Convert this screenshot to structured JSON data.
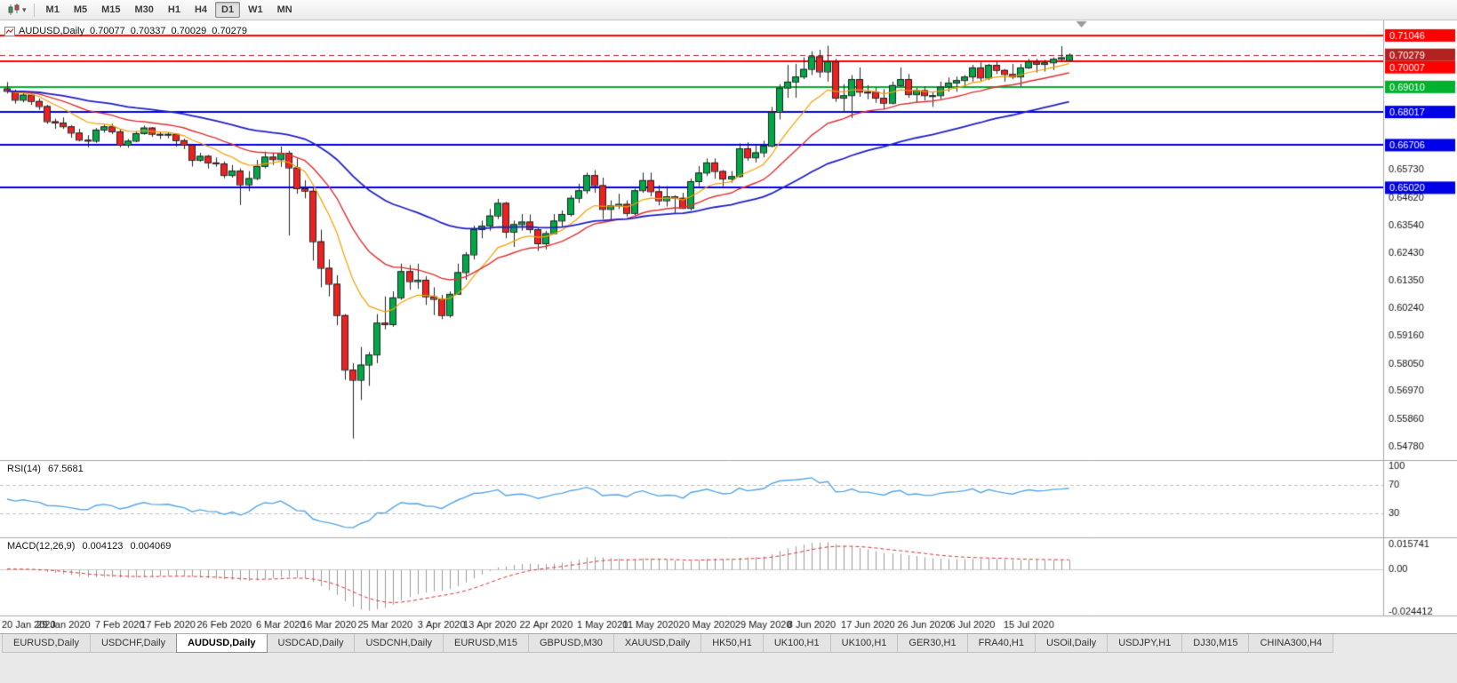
{
  "toolbar": {
    "chart_icon": "candlestick-chart-icon",
    "timeframes": [
      {
        "label": "M1",
        "active": false
      },
      {
        "label": "M5",
        "active": false
      },
      {
        "label": "M15",
        "active": false
      },
      {
        "label": "M30",
        "active": false
      },
      {
        "label": "H1",
        "active": false
      },
      {
        "label": "H4",
        "active": false
      },
      {
        "label": "D1",
        "active": true
      },
      {
        "label": "W1",
        "active": false
      },
      {
        "label": "MN",
        "active": false
      }
    ]
  },
  "chart": {
    "symbol": "AUDUSD,Daily",
    "ohlc": {
      "open": "0.70077",
      "high": "0.70337",
      "low": "0.70029",
      "close": "0.70279"
    }
  },
  "indicators": {
    "rsi": {
      "label": "RSI(14)",
      "value": "67.5681"
    },
    "macd": {
      "label": "MACD(12,26,9)",
      "value": "0.004123",
      "signal_value": "0.004069"
    }
  },
  "chart_data": {
    "type": "candlestick",
    "symbol": "AUDUSD",
    "timeframe": "Daily",
    "y_axis": {
      "max": 0.715,
      "min": 0.5435,
      "labels": [
        "0.65730",
        "0.64620",
        "0.63540",
        "0.62430",
        "0.61350",
        "0.60240",
        "0.59160",
        "0.58050",
        "0.56970",
        "0.55860",
        "0.54780"
      ]
    },
    "rsi_axis": {
      "max": 100,
      "min": 0,
      "labels": [
        "100",
        "70",
        "30"
      ],
      "dashed_levels": [
        70,
        30
      ]
    },
    "macd_axis": {
      "max": 0.0158,
      "min": -0.0244,
      "labels": [
        "0.015741",
        "0.00",
        "-0.024412"
      ]
    },
    "levels": [
      {
        "text": "0.71046",
        "color": "#FF0000"
      },
      {
        "text": "0.70007",
        "color": "#FF0000"
      },
      {
        "text": "0.69010",
        "color": "#00B22D"
      },
      {
        "text": "0.68017",
        "color": "#0000E8"
      },
      {
        "text": "0.66706",
        "color": "#0000E8"
      },
      {
        "text": "0.65020",
        "color": "#0000E8"
      }
    ],
    "current_price": {
      "text": "0.70279",
      "color": "#B22222"
    },
    "moving_averages": [
      {
        "name": "fast-ma",
        "period": 10,
        "color": "#F5A000",
        "width": 1.2
      },
      {
        "name": "mid-ma",
        "period": 21,
        "color": "#E03030",
        "width": 1.4
      },
      {
        "name": "slow-ma",
        "period": 50,
        "color": "#2020C8",
        "width": 1.8
      }
    ],
    "colors": {
      "bull": "#00A846",
      "bear": "#EE2020",
      "wick": "#222222",
      "rsi": "#56A5E8",
      "macd_hist": "#9A9A9A",
      "macd_signal": "#E03030"
    },
    "x_axis": {
      "labels": [
        {
          "index": 0,
          "text": "20 Jan 2020"
        },
        {
          "index": 7,
          "text": "29 Jan 2020"
        },
        {
          "index": 14,
          "text": "7 Feb 2020"
        },
        {
          "index": 20,
          "text": "17 Feb 2020"
        },
        {
          "index": 27,
          "text": "26 Feb 2020"
        },
        {
          "index": 34,
          "text": "6 Mar 2020"
        },
        {
          "index": 40,
          "text": "16 Mar 2020"
        },
        {
          "index": 47,
          "text": "25 Mar 2020"
        },
        {
          "index": 54,
          "text": "3 Apr 2020"
        },
        {
          "index": 60,
          "text": "13 Apr 2020"
        },
        {
          "index": 67,
          "text": "22 Apr 2020"
        },
        {
          "index": 74,
          "text": "1 May 2020"
        },
        {
          "index": 80,
          "text": "11 May 2020"
        },
        {
          "index": 87,
          "text": "20 May 2020"
        },
        {
          "index": 94,
          "text": "29 May 2020"
        },
        {
          "index": 100,
          "text": "8 Jun 2020"
        },
        {
          "index": 107,
          "text": "17 Jun 2020"
        },
        {
          "index": 114,
          "text": "26 Jun 2020"
        },
        {
          "index": 120,
          "text": "6 Jul 2020"
        },
        {
          "index": 127,
          "text": "15 Jul 2020"
        }
      ]
    },
    "candles": [
      [
        0.6895,
        0.692,
        0.6875,
        0.6885
      ],
      [
        0.6885,
        0.689,
        0.6835,
        0.685
      ],
      [
        0.685,
        0.688,
        0.684,
        0.687
      ],
      [
        0.687,
        0.6875,
        0.683,
        0.6845
      ],
      [
        0.6845,
        0.6855,
        0.681,
        0.6825
      ],
      [
        0.6825,
        0.683,
        0.6755,
        0.6765
      ],
      [
        0.6765,
        0.6775,
        0.6735,
        0.676
      ],
      [
        0.676,
        0.678,
        0.6735,
        0.6745
      ],
      [
        0.6745,
        0.675,
        0.67,
        0.672
      ],
      [
        0.672,
        0.6735,
        0.6685,
        0.6692
      ],
      [
        0.6692,
        0.671,
        0.6662,
        0.6688
      ],
      [
        0.6688,
        0.6738,
        0.668,
        0.6732
      ],
      [
        0.6732,
        0.6752,
        0.672,
        0.6745
      ],
      [
        0.6745,
        0.6755,
        0.6715,
        0.6725
      ],
      [
        0.6725,
        0.6733,
        0.6662,
        0.6672
      ],
      [
        0.6672,
        0.6695,
        0.666,
        0.6688
      ],
      [
        0.6688,
        0.6725,
        0.6682,
        0.6718
      ],
      [
        0.6718,
        0.6748,
        0.6712,
        0.674
      ],
      [
        0.674,
        0.6742,
        0.6703,
        0.6715
      ],
      [
        0.6715,
        0.6723,
        0.6695,
        0.6712
      ],
      [
        0.6712,
        0.6722,
        0.6698,
        0.6715
      ],
      [
        0.6715,
        0.6718,
        0.6665,
        0.669
      ],
      [
        0.669,
        0.6696,
        0.6655,
        0.6672
      ],
      [
        0.6672,
        0.6676,
        0.6586,
        0.6612
      ],
      [
        0.6612,
        0.664,
        0.6605,
        0.6628
      ],
      [
        0.6628,
        0.6632,
        0.6578,
        0.6602
      ],
      [
        0.6602,
        0.6622,
        0.6585,
        0.6598
      ],
      [
        0.6598,
        0.6606,
        0.654,
        0.6552
      ],
      [
        0.6552,
        0.6592,
        0.6542,
        0.657
      ],
      [
        0.657,
        0.6578,
        0.6434,
        0.6515
      ],
      [
        0.6515,
        0.6568,
        0.6488,
        0.654
      ],
      [
        0.654,
        0.6612,
        0.6532,
        0.6588
      ],
      [
        0.6588,
        0.6645,
        0.6578,
        0.6625
      ],
      [
        0.6625,
        0.6642,
        0.6592,
        0.6615
      ],
      [
        0.6615,
        0.6665,
        0.6585,
        0.664
      ],
      [
        0.664,
        0.6648,
        0.6313,
        0.6582
      ],
      [
        0.6582,
        0.6618,
        0.6478,
        0.65
      ],
      [
        0.65,
        0.6532,
        0.646,
        0.649
      ],
      [
        0.649,
        0.6502,
        0.6214,
        0.629
      ],
      [
        0.629,
        0.6336,
        0.6108,
        0.6185
      ],
      [
        0.6185,
        0.6218,
        0.6072,
        0.6122
      ],
      [
        0.6122,
        0.6156,
        0.5958,
        0.5998
      ],
      [
        0.5998,
        0.6002,
        0.5742,
        0.5782
      ],
      [
        0.5782,
        0.5808,
        0.551,
        0.5742
      ],
      [
        0.5742,
        0.5872,
        0.5662,
        0.5802
      ],
      [
        0.5802,
        0.5852,
        0.5718,
        0.5842
      ],
      [
        0.5842,
        0.6002,
        0.5808,
        0.5968
      ],
      [
        0.5968,
        0.6072,
        0.5942,
        0.5962
      ],
      [
        0.5962,
        0.6092,
        0.5952,
        0.6068
      ],
      [
        0.6068,
        0.6202,
        0.6058,
        0.6172
      ],
      [
        0.6172,
        0.6196,
        0.6098,
        0.6132
      ],
      [
        0.6132,
        0.6202,
        0.6102,
        0.6138
      ],
      [
        0.6138,
        0.6152,
        0.6038,
        0.6072
      ],
      [
        0.6072,
        0.6108,
        0.5998,
        0.6062
      ],
      [
        0.6062,
        0.6078,
        0.5982,
        0.5998
      ],
      [
        0.5998,
        0.6092,
        0.5988,
        0.6082
      ],
      [
        0.6082,
        0.6202,
        0.6078,
        0.6168
      ],
      [
        0.6168,
        0.6248,
        0.6138,
        0.6238
      ],
      [
        0.6238,
        0.6352,
        0.6218,
        0.6338
      ],
      [
        0.6338,
        0.6372,
        0.6302,
        0.6352
      ],
      [
        0.6352,
        0.6418,
        0.6332,
        0.6392
      ],
      [
        0.6392,
        0.6458,
        0.6378,
        0.6442
      ],
      [
        0.6442,
        0.6446,
        0.6302,
        0.6328
      ],
      [
        0.6328,
        0.6372,
        0.6268,
        0.6358
      ],
      [
        0.6358,
        0.6398,
        0.6332,
        0.6368
      ],
      [
        0.6368,
        0.6396,
        0.6322,
        0.6338
      ],
      [
        0.6338,
        0.6342,
        0.6252,
        0.6282
      ],
      [
        0.6282,
        0.6332,
        0.6258,
        0.6322
      ],
      [
        0.6322,
        0.6398,
        0.6318,
        0.6372
      ],
      [
        0.6372,
        0.6412,
        0.6348,
        0.6398
      ],
      [
        0.6398,
        0.6472,
        0.6388,
        0.6462
      ],
      [
        0.6462,
        0.6518,
        0.6442,
        0.6492
      ],
      [
        0.6492,
        0.6562,
        0.6478,
        0.6552
      ],
      [
        0.6552,
        0.6572,
        0.6482,
        0.6512
      ],
      [
        0.6512,
        0.6542,
        0.6378,
        0.6418
      ],
      [
        0.6418,
        0.6452,
        0.6372,
        0.6432
      ],
      [
        0.6432,
        0.6478,
        0.6418,
        0.6438
      ],
      [
        0.6438,
        0.6452,
        0.6388,
        0.6402
      ],
      [
        0.6402,
        0.6498,
        0.6392,
        0.6492
      ],
      [
        0.6492,
        0.6562,
        0.6482,
        0.6532
      ],
      [
        0.6532,
        0.6562,
        0.6468,
        0.6488
      ],
      [
        0.6488,
        0.6512,
        0.6432,
        0.6452
      ],
      [
        0.6452,
        0.6508,
        0.6428,
        0.6468
      ],
      [
        0.6468,
        0.6472,
        0.6402,
        0.6462
      ],
      [
        0.6462,
        0.6482,
        0.6418,
        0.6422
      ],
      [
        0.6422,
        0.6538,
        0.6412,
        0.6528
      ],
      [
        0.6528,
        0.6588,
        0.6508,
        0.6562
      ],
      [
        0.6562,
        0.6618,
        0.6548,
        0.6602
      ],
      [
        0.6602,
        0.6618,
        0.6538,
        0.6568
      ],
      [
        0.6568,
        0.6572,
        0.6508,
        0.6538
      ],
      [
        0.6538,
        0.6568,
        0.6522,
        0.6548
      ],
      [
        0.6548,
        0.6678,
        0.6542,
        0.6658
      ],
      [
        0.6658,
        0.6682,
        0.6608,
        0.6622
      ],
      [
        0.6622,
        0.6668,
        0.6602,
        0.6642
      ],
      [
        0.6642,
        0.6688,
        0.6622,
        0.6668
      ],
      [
        0.6668,
        0.6822,
        0.6662,
        0.6802
      ],
      [
        0.6802,
        0.6912,
        0.6772,
        0.6898
      ],
      [
        0.6898,
        0.6988,
        0.6858,
        0.6922
      ],
      [
        0.6922,
        0.6992,
        0.6858,
        0.6942
      ],
      [
        0.6942,
        0.7018,
        0.6932,
        0.6972
      ],
      [
        0.6972,
        0.7042,
        0.6948,
        0.7022
      ],
      [
        0.7022,
        0.7048,
        0.6938,
        0.6962
      ],
      [
        0.6962,
        0.7064,
        0.6922,
        0.7002
      ],
      [
        0.7002,
        0.7012,
        0.6842,
        0.6858
      ],
      [
        0.6858,
        0.6912,
        0.6802,
        0.6868
      ],
      [
        0.6868,
        0.6948,
        0.6778,
        0.6932
      ],
      [
        0.6932,
        0.6978,
        0.6862,
        0.6882
      ],
      [
        0.6882,
        0.6908,
        0.6852,
        0.6882
      ],
      [
        0.6882,
        0.6898,
        0.6838,
        0.6858
      ],
      [
        0.6858,
        0.6892,
        0.6812,
        0.6838
      ],
      [
        0.6838,
        0.6922,
        0.6832,
        0.6908
      ],
      [
        0.6908,
        0.6978,
        0.6902,
        0.6932
      ],
      [
        0.6932,
        0.6952,
        0.6858,
        0.6872
      ],
      [
        0.6872,
        0.6898,
        0.6838,
        0.6888
      ],
      [
        0.6888,
        0.6902,
        0.6848,
        0.6868
      ],
      [
        0.6868,
        0.6882,
        0.6822,
        0.6868
      ],
      [
        0.6868,
        0.6922,
        0.6852,
        0.6902
      ],
      [
        0.6902,
        0.6938,
        0.6882,
        0.6918
      ],
      [
        0.6918,
        0.6942,
        0.6882,
        0.6928
      ],
      [
        0.6928,
        0.6948,
        0.6902,
        0.6942
      ],
      [
        0.6942,
        0.6988,
        0.6922,
        0.6978
      ],
      [
        0.6978,
        0.6998,
        0.6922,
        0.6938
      ],
      [
        0.6938,
        0.6992,
        0.6928,
        0.6988
      ],
      [
        0.6988,
        0.7002,
        0.6952,
        0.6968
      ],
      [
        0.6968,
        0.6972,
        0.6922,
        0.6952
      ],
      [
        0.6952,
        0.6992,
        0.6932,
        0.6942
      ],
      [
        0.6942,
        0.6992,
        0.6902,
        0.6978
      ],
      [
        0.6978,
        0.7012,
        0.6972,
        0.7002
      ],
      [
        0.7002,
        0.7012,
        0.6958,
        0.6992
      ],
      [
        0.6992,
        0.7008,
        0.6962,
        0.6998
      ],
      [
        0.6998,
        0.7018,
        0.6968,
        0.7012
      ],
      [
        0.7012,
        0.7062,
        0.7002,
        0.7018
      ],
      [
        0.70077,
        0.70337,
        0.70029,
        0.70279
      ]
    ]
  },
  "tabs": [
    {
      "label": "EURUSD,Daily",
      "active": false
    },
    {
      "label": "USDCHF,Daily",
      "active": false
    },
    {
      "label": "AUDUSD,Daily",
      "active": true
    },
    {
      "label": "USDCAD,Daily",
      "active": false
    },
    {
      "label": "USDCNH,Daily",
      "active": false
    },
    {
      "label": "EURUSD,M15",
      "active": false
    },
    {
      "label": "GBPUSD,M30",
      "active": false
    },
    {
      "label": "XAUUSD,Daily",
      "active": false
    },
    {
      "label": "HK50,H1",
      "active": false
    },
    {
      "label": "UK100,H1",
      "active": false
    },
    {
      "label": "UK100,H1",
      "active": false
    },
    {
      "label": "GER30,H1",
      "active": false
    },
    {
      "label": "FRA40,H1",
      "active": false
    },
    {
      "label": "USOil,Daily",
      "active": false
    },
    {
      "label": "USDJPY,H1",
      "active": false
    },
    {
      "label": "DJ30,M15",
      "active": false
    },
    {
      "label": "CHINA300,H4",
      "active": false
    }
  ]
}
